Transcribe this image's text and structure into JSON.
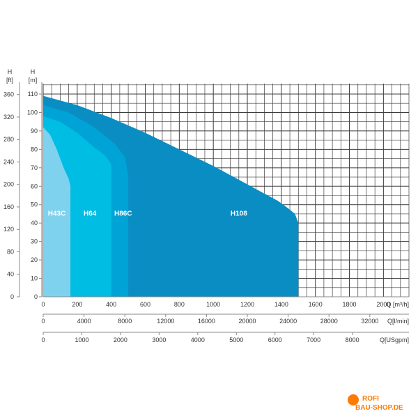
{
  "chart_data": {
    "type": "area",
    "y_axes": {
      "left_ft": {
        "label_1": "H",
        "label_2": "[ft]",
        "ticks": [
          0,
          40,
          80,
          120,
          160,
          200,
          240,
          280,
          320,
          360
        ]
      },
      "left_m": {
        "label_1": "H",
        "label_2": "[m]",
        "ticks": [
          0,
          10,
          20,
          30,
          40,
          50,
          60,
          70,
          80,
          90,
          100,
          110
        ],
        "ylim": [
          0,
          110
        ]
      }
    },
    "x_axes": {
      "q_m3h": {
        "label": "Q [m³/h]",
        "ticks": [
          0,
          200,
          400,
          600,
          800,
          1000,
          1200,
          1400,
          1600,
          1800,
          2000
        ],
        "xlim": [
          0,
          2150
        ]
      },
      "q_lmin": {
        "label": "Q[l/min]",
        "ticks": [
          0,
          4000,
          8000,
          12000,
          16000,
          20000,
          24000,
          28000,
          32000
        ]
      },
      "q_usgpm": {
        "label": "Q[USgpm]",
        "ticks": [
          0,
          1000,
          2000,
          3000,
          4000,
          5000,
          6000,
          7000,
          8000
        ]
      }
    },
    "grid": true,
    "series": [
      {
        "name": "H108",
        "color": "#0a8dc3",
        "label_at": [
          1150,
          44
        ],
        "x": [
          0,
          200,
          400,
          600,
          800,
          1000,
          1200,
          1380,
          1440,
          1480,
          1500,
          1500,
          0
        ],
        "y": [
          109,
          104,
          97,
          89,
          80,
          71,
          61,
          52,
          48,
          45,
          40,
          0,
          0
        ]
      },
      {
        "name": "H86C",
        "color": "#00a3d6",
        "label_at": [
          470,
          44
        ],
        "x": [
          0,
          150,
          300,
          420,
          480,
          500,
          500,
          0
        ],
        "y": [
          104,
          100,
          92,
          83,
          76,
          66,
          0,
          0
        ]
      },
      {
        "name": "H64",
        "color": "#00bde3",
        "label_at": [
          275,
          44
        ],
        "x": [
          0,
          100,
          200,
          300,
          360,
          400,
          400,
          0
        ],
        "y": [
          98,
          95,
          89,
          81,
          77,
          72,
          0,
          0
        ]
      },
      {
        "name": "H43C",
        "color": "#7ed2ee",
        "label_at": [
          80,
          44
        ],
        "x": [
          0,
          40,
          80,
          120,
          150,
          160,
          160,
          0
        ],
        "y": [
          92,
          88,
          80,
          70,
          64,
          60,
          0,
          0
        ]
      }
    ]
  },
  "watermark": {
    "line1": "ROFI",
    "line2": "BAU-SHOP.DE"
  }
}
